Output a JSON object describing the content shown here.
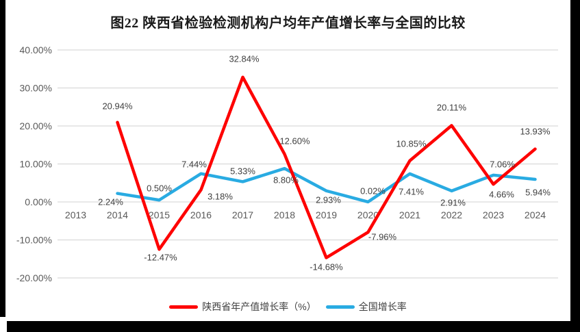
{
  "title": "图22 陕西省检验检测机构户均年产值增长率与全国的比较",
  "colors": {
    "shaanxi_series": "#fe0000",
    "national_series": "#29abe2",
    "gridline": "#d9d9d9",
    "axis_text": "#595959",
    "data_label_text": "#3f3f3f",
    "title_text": "#1a1a1a",
    "frame": "#000000"
  },
  "chart_data": {
    "type": "line",
    "title": "图22 陕西省检验检测机构户均年产值增长率与全国的比较",
    "categories": [
      "2013",
      "2014",
      "2015",
      "2016",
      "2017",
      "2018",
      "2019",
      "2020",
      "2021",
      "2022",
      "2023",
      "2024"
    ],
    "y_axis": {
      "tick_labels": [
        "40.00%",
        "30.00%",
        "20.00%",
        "10.00%",
        "0.00%",
        "-10.00%",
        "-20.00%"
      ],
      "tick_values": [
        40,
        30,
        20,
        10,
        0,
        -10,
        -20
      ],
      "ylim": [
        -20,
        40
      ],
      "unit": "%"
    },
    "grid": true,
    "legend_position": "bottom",
    "series": [
      {
        "name": "全国增长率",
        "color_key": "national_series",
        "start_index": 1,
        "values": [
          2.24,
          0.5,
          7.44,
          5.33,
          8.8,
          2.93,
          0.02,
          7.41,
          2.91,
          7.06,
          5.94
        ],
        "point_labels": [
          "2.24%",
          "0.50%",
          "7.44%",
          "5.33%",
          "8.80%",
          "2.93%",
          "0.02%",
          "7.41%",
          "2.91%",
          "7.06%",
          "5.94%"
        ],
        "label_offsets": [
          [
            -10,
            12
          ],
          [
            0,
            -17
          ],
          [
            -10,
            -14
          ],
          [
            0,
            -15
          ],
          [
            2,
            17
          ],
          [
            3,
            13
          ],
          [
            7,
            -16
          ],
          [
            2,
            26
          ],
          [
            2,
            17
          ],
          [
            13,
            -16
          ],
          [
            4,
            19
          ]
        ]
      },
      {
        "name": "陕西省年产值增长率（%）",
        "color_key": "shaanxi_series",
        "start_index": 1,
        "values": [
          20.94,
          -12.47,
          3.18,
          32.84,
          12.6,
          -14.68,
          -7.96,
          10.85,
          20.11,
          4.66,
          13.93
        ],
        "point_labels": [
          "20.94%",
          "-12.47%",
          "3.18%",
          "32.84%",
          "12.60%",
          "-14.68%",
          "-7.96%",
          "10.85%",
          "20.11%",
          "4.66%",
          "13.93%"
        ],
        "label_offsets": [
          [
            0,
            -24
          ],
          [
            2,
            12
          ],
          [
            28,
            10
          ],
          [
            2,
            -27
          ],
          [
            15,
            -19
          ],
          [
            0,
            14
          ],
          [
            21,
            7
          ],
          [
            2,
            -25
          ],
          [
            0,
            -26
          ],
          [
            12,
            15
          ],
          [
            0,
            -26
          ]
        ]
      }
    ]
  },
  "legend": {
    "items": [
      {
        "label": "陕西省年产值增长率（%）",
        "color_key": "shaanxi_series"
      },
      {
        "label": "全国增长率",
        "color_key": "national_series"
      }
    ]
  }
}
